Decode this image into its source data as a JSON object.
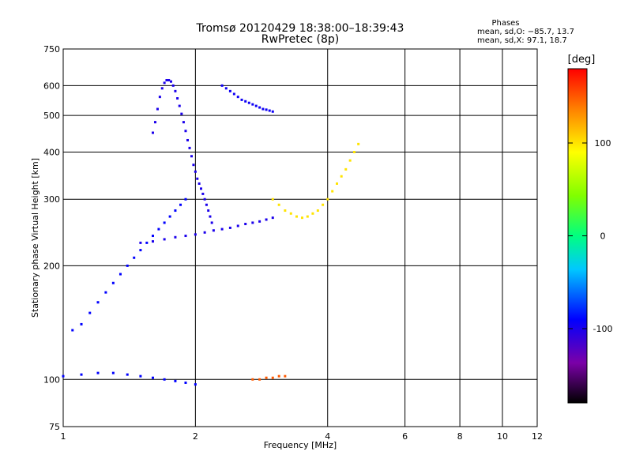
{
  "chart_data": {
    "type": "scatter",
    "title": "Tromsø 20120429  18:38:00–18:39:43",
    "subtitle": "RwPretec (8p)",
    "xlabel": "Frequency [MHz]",
    "ylabel": "Stationary phase Virtual Height [km]",
    "x_scale": "log",
    "y_scale": "log",
    "xlim": [
      1,
      12
    ],
    "ylim": [
      75,
      750
    ],
    "x_ticks": [
      1,
      2,
      4,
      6,
      8,
      10,
      12
    ],
    "y_ticks": [
      75,
      100,
      200,
      300,
      400,
      500,
      600,
      750
    ],
    "grid": true,
    "phases_box": {
      "title": "Phases",
      "line_o": "mean, sd,O: −85.7, 13.7",
      "line_x": "mean, sd,X:  97.1, 18.7"
    },
    "colorbar": {
      "unit": "[deg]",
      "range": [
        -180,
        180
      ],
      "ticks": [
        100,
        0,
        -100
      ],
      "colormap": "rainbow"
    },
    "series": [
      {
        "phase": -100,
        "points": [
          [
            1.6,
            450
          ],
          [
            1.62,
            480
          ],
          [
            1.64,
            520
          ],
          [
            1.66,
            560
          ],
          [
            1.68,
            590
          ],
          [
            1.7,
            610
          ],
          [
            1.72,
            620
          ],
          [
            1.74,
            620
          ],
          [
            1.76,
            615
          ],
          [
            1.78,
            600
          ],
          [
            1.8,
            580
          ],
          [
            1.82,
            555
          ],
          [
            1.84,
            530
          ],
          [
            1.86,
            505
          ],
          [
            1.88,
            480
          ],
          [
            1.9,
            455
          ],
          [
            1.92,
            430
          ],
          [
            1.94,
            410
          ],
          [
            1.96,
            390
          ],
          [
            1.98,
            370
          ],
          [
            2.0,
            355
          ],
          [
            2.02,
            340
          ],
          [
            2.04,
            330
          ],
          [
            2.06,
            320
          ],
          [
            2.08,
            310
          ],
          [
            2.1,
            300
          ],
          [
            2.12,
            290
          ],
          [
            2.14,
            280
          ],
          [
            2.16,
            270
          ],
          [
            2.18,
            260
          ]
        ]
      },
      {
        "phase": 100,
        "points": [
          [
            3.0,
            300
          ],
          [
            3.1,
            290
          ],
          [
            3.2,
            280
          ],
          [
            3.3,
            275
          ],
          [
            3.4,
            270
          ],
          [
            3.5,
            268
          ],
          [
            3.6,
            270
          ],
          [
            3.7,
            275
          ],
          [
            3.8,
            280
          ],
          [
            3.9,
            290
          ],
          [
            4.0,
            300
          ],
          [
            4.1,
            315
          ],
          [
            4.2,
            330
          ],
          [
            4.3,
            345
          ],
          [
            4.4,
            360
          ],
          [
            4.5,
            380
          ],
          [
            4.6,
            400
          ],
          [
            4.7,
            420
          ]
        ]
      },
      {
        "phase": -95,
        "points": [
          [
            2.3,
            600
          ],
          [
            2.35,
            590
          ],
          [
            2.4,
            580
          ],
          [
            2.45,
            570
          ],
          [
            2.5,
            560
          ],
          [
            2.55,
            550
          ],
          [
            2.6,
            545
          ],
          [
            2.65,
            540
          ],
          [
            2.7,
            535
          ],
          [
            2.75,
            530
          ],
          [
            2.8,
            525
          ],
          [
            2.85,
            520
          ],
          [
            2.9,
            518
          ],
          [
            2.95,
            515
          ],
          [
            3.0,
            512
          ]
        ]
      },
      {
        "phase": -90,
        "points": [
          [
            1.05,
            135
          ],
          [
            1.1,
            140
          ],
          [
            1.15,
            150
          ],
          [
            1.2,
            160
          ],
          [
            1.25,
            170
          ],
          [
            1.3,
            180
          ],
          [
            1.35,
            190
          ],
          [
            1.4,
            200
          ],
          [
            1.45,
            210
          ],
          [
            1.5,
            220
          ],
          [
            1.55,
            230
          ],
          [
            1.6,
            240
          ],
          [
            1.65,
            250
          ],
          [
            1.7,
            260
          ],
          [
            1.75,
            270
          ],
          [
            1.8,
            280
          ],
          [
            1.85,
            290
          ],
          [
            1.9,
            300
          ]
        ]
      },
      {
        "phase": -100,
        "points": [
          [
            1.5,
            230
          ],
          [
            1.6,
            232
          ],
          [
            1.7,
            235
          ],
          [
            1.8,
            238
          ],
          [
            1.9,
            240
          ],
          [
            2.0,
            242
          ],
          [
            2.1,
            245
          ],
          [
            2.2,
            248
          ],
          [
            2.3,
            250
          ],
          [
            2.4,
            252
          ],
          [
            2.5,
            255
          ],
          [
            2.6,
            258
          ],
          [
            2.7,
            260
          ],
          [
            2.8,
            262
          ],
          [
            2.9,
            265
          ],
          [
            3.0,
            268
          ]
        ]
      },
      {
        "phase": 150,
        "points": [
          [
            2.7,
            100
          ],
          [
            2.8,
            100
          ],
          [
            2.9,
            101
          ],
          [
            3.0,
            101
          ],
          [
            3.1,
            102
          ],
          [
            3.2,
            102
          ]
        ]
      },
      {
        "phase": -90,
        "points": [
          [
            1.0,
            102
          ],
          [
            1.1,
            103
          ],
          [
            1.2,
            104
          ],
          [
            1.3,
            104
          ],
          [
            1.4,
            103
          ],
          [
            1.5,
            102
          ],
          [
            1.6,
            101
          ],
          [
            1.7,
            100
          ],
          [
            1.8,
            99
          ],
          [
            1.9,
            98
          ],
          [
            2.0,
            97
          ]
        ]
      }
    ]
  }
}
